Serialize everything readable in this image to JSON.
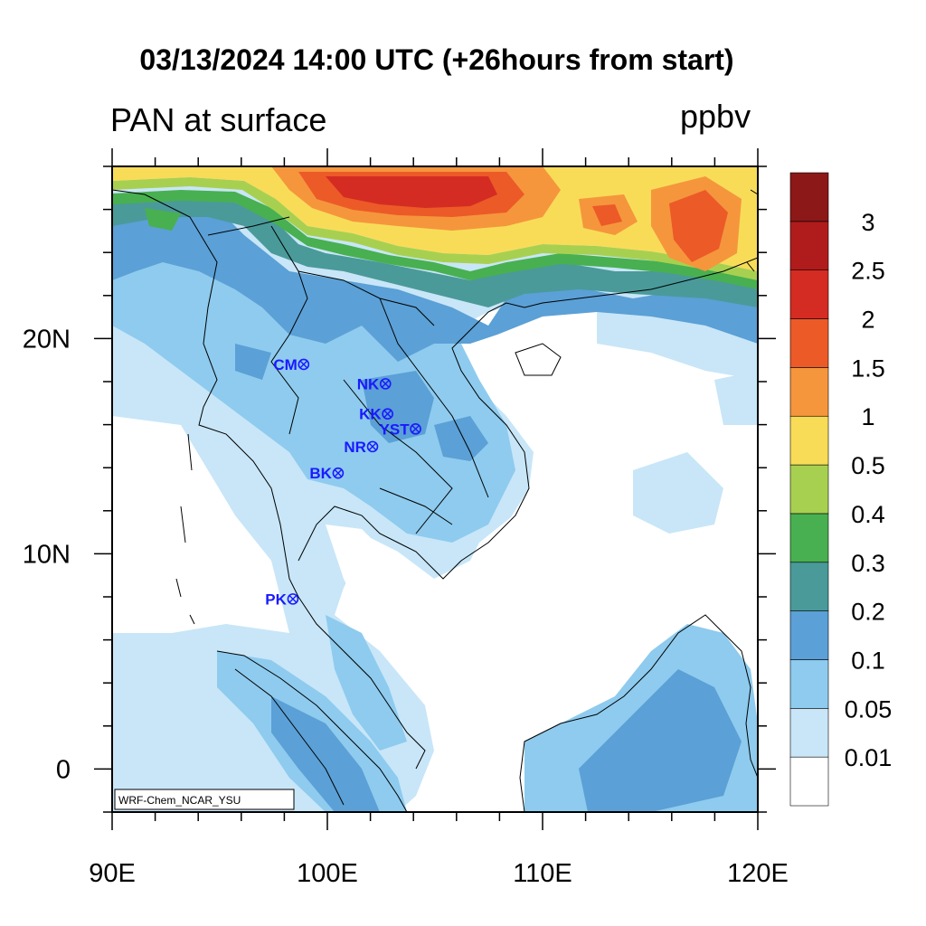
{
  "title": "03/13/2024 14:00 UTC (+26hours from start)",
  "subtitle_left": "PAN at surface",
  "units": "ppbv",
  "credit": "WRF-Chem_NCAR_YSU",
  "map": {
    "lon_range": [
      90,
      120
    ],
    "lat_range": [
      -2,
      28
    ],
    "lon_ticks": [
      {
        "value": 90,
        "label": "90E"
      },
      {
        "value": 100,
        "label": "100E"
      },
      {
        "value": 110,
        "label": "110E"
      },
      {
        "value": 120,
        "label": "120E"
      }
    ],
    "lat_ticks": [
      {
        "value": 0,
        "label": "0"
      },
      {
        "value": 10,
        "label": "10N"
      },
      {
        "value": 20,
        "label": "20N"
      }
    ]
  },
  "stations": [
    {
      "name": "CM",
      "lon": 98.9,
      "lat": 18.8
    },
    {
      "name": "NK",
      "lon": 102.7,
      "lat": 17.9
    },
    {
      "name": "KK",
      "lon": 102.8,
      "lat": 16.5
    },
    {
      "name": "YST",
      "lon": 104.1,
      "lat": 15.8
    },
    {
      "name": "NR",
      "lon": 102.1,
      "lat": 14.98
    },
    {
      "name": "BK",
      "lon": 100.5,
      "lat": 13.75
    },
    {
      "name": "PK",
      "lon": 98.4,
      "lat": 7.9
    }
  ],
  "colorbar": {
    "levels": [
      "0.01",
      "0.05",
      "0.1",
      "0.2",
      "0.3",
      "0.4",
      "0.5",
      "1",
      "1.5",
      "2",
      "2.5",
      "3"
    ],
    "colors": [
      "#ffffff",
      "#c8e6f8",
      "#8ecbee",
      "#5ba0d6",
      "#4a9a9a",
      "#48b050",
      "#a8d050",
      "#f8dc58",
      "#f5963c",
      "#ec5a28",
      "#d42c22",
      "#b01c1c",
      "#8c1818"
    ]
  }
}
